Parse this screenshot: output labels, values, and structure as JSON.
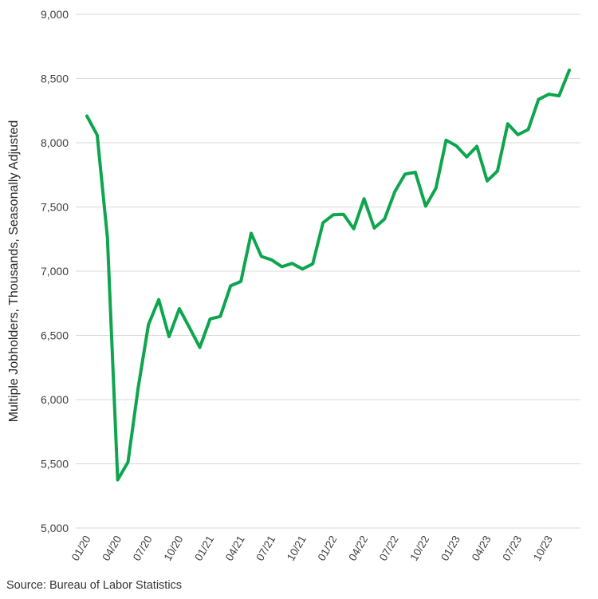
{
  "chart_data": {
    "type": "line",
    "title": "",
    "xlabel": "",
    "ylabel": "Multiple Jobholders, Thousands, Seasonally Adjusted",
    "ylim": [
      5000,
      9000
    ],
    "ytick_interval": 500,
    "yticks": [
      5000,
      5500,
      6000,
      6500,
      7000,
      7500,
      8000,
      8500,
      9000
    ],
    "ytick_labels": [
      "5,000",
      "5,500",
      "6,000",
      "6,500",
      "7,000",
      "7,500",
      "8,000",
      "8,500",
      "9,000"
    ],
    "grid": true,
    "legend": false,
    "line_color": "#0ea54e",
    "grid_color": "#d9d9d9",
    "text_color": "#404040",
    "title_color": "#262626",
    "xtick_every": 3,
    "xtick_labels": [
      "01/20",
      "04/20",
      "07/20",
      "10/20",
      "01/21",
      "04/21",
      "07/21",
      "10/21",
      "01/22",
      "04/22",
      "07/22",
      "10/22",
      "01/23",
      "04/23",
      "07/23",
      "10/23"
    ],
    "x": [
      "01/20",
      "02/20",
      "03/20",
      "04/20",
      "05/20",
      "06/20",
      "07/20",
      "08/20",
      "09/20",
      "10/20",
      "11/20",
      "12/20",
      "01/21",
      "02/21",
      "03/21",
      "04/21",
      "05/21",
      "06/21",
      "07/21",
      "08/21",
      "09/21",
      "10/21",
      "11/21",
      "12/21",
      "01/22",
      "02/22",
      "03/22",
      "04/22",
      "05/22",
      "06/22",
      "07/22",
      "08/22",
      "09/22",
      "10/22",
      "11/22",
      "12/22",
      "01/23",
      "02/23",
      "03/23",
      "04/23",
      "05/23",
      "06/23",
      "07/23",
      "08/23",
      "09/23",
      "10/23",
      "11/23",
      "12/23"
    ],
    "series": [
      {
        "name": "Multiple Jobholders",
        "color": "#0ea54e",
        "values": [
          8208,
          8060,
          7263,
          5375,
          5513,
          6096,
          6584,
          6779,
          6490,
          6708,
          6560,
          6406,
          6628,
          6648,
          6886,
          6920,
          7295,
          7115,
          7088,
          7035,
          7061,
          7017,
          7057,
          7377,
          7439,
          7443,
          7330,
          7564,
          7336,
          7406,
          7620,
          7756,
          7770,
          7506,
          7646,
          8020,
          7976,
          7890,
          7972,
          7703,
          7780,
          8148,
          8063,
          8103,
          8337,
          8378,
          8365,
          8565
        ]
      }
    ]
  },
  "footer": {
    "source": "Source: Bureau of Labor Statistics"
  }
}
